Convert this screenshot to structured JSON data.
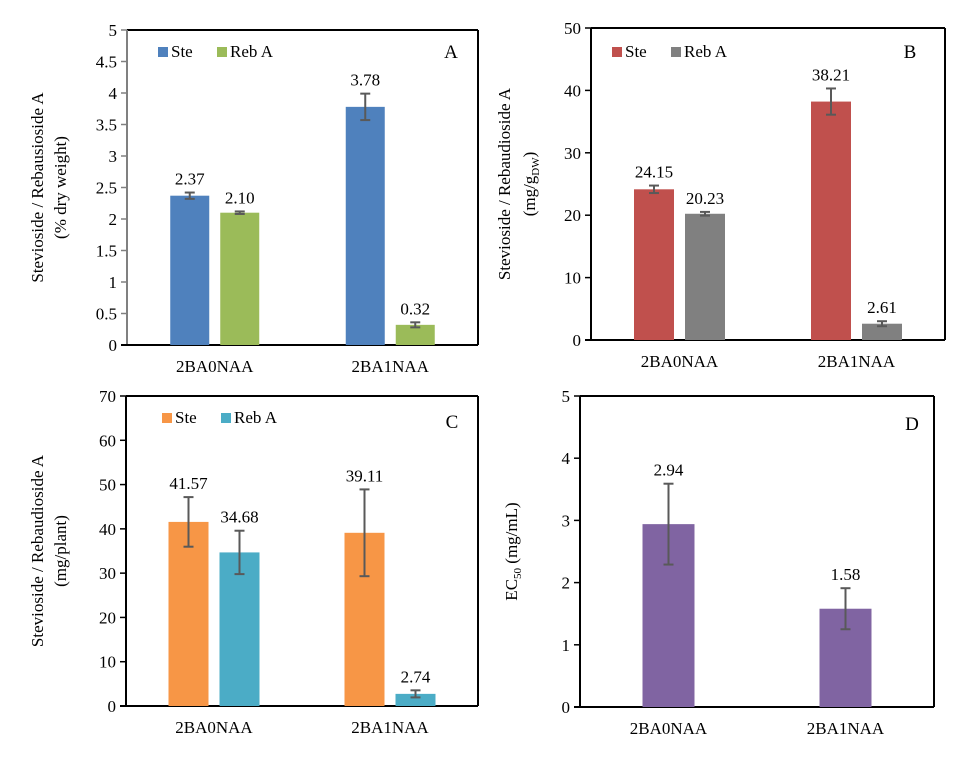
{
  "chart_data": [
    {
      "type": "bar",
      "panel_label": "A",
      "ylabel_line1": "Stevioside / Rebausioside A",
      "ylabel_line2": "(% dry weight)",
      "xlabel": "",
      "categories": [
        "2BA0NAA",
        "2BA1NAA"
      ],
      "ylim": [
        0,
        5
      ],
      "yticks": [
        0,
        0.5,
        1,
        1.5,
        2,
        2.5,
        3,
        3.5,
        4,
        4.5,
        5
      ],
      "ytick_labels": [
        "0",
        "0.5",
        "1",
        "1.5",
        "2",
        "2.5",
        "3",
        "3.5",
        "4",
        "4.5",
        "5"
      ],
      "legend_position": "top-left",
      "grid": false,
      "series": [
        {
          "name": "Ste",
          "color": "#4F81BD",
          "values": [
            2.37,
            3.78
          ],
          "errors": [
            0.05,
            0.21
          ],
          "labels": [
            "2.37",
            "3.78"
          ]
        },
        {
          "name": "Reb A",
          "color": "#9BBB59",
          "values": [
            2.1,
            0.32
          ],
          "errors": [
            0.02,
            0.04
          ],
          "labels": [
            "2.10",
            "0.32"
          ]
        }
      ]
    },
    {
      "type": "bar",
      "panel_label": "B",
      "ylabel_line1": "Stevioside / Rebaudioside A",
      "ylabel_line2": "(mg/g",
      "ylabel_sub": "DW",
      "ylabel_line2_end": ")",
      "xlabel": "",
      "categories": [
        "2BA0NAA",
        "2BA1NAA"
      ],
      "ylim": [
        0,
        50
      ],
      "yticks": [
        0,
        10,
        20,
        30,
        40,
        50
      ],
      "ytick_labels": [
        "0",
        "10",
        "20",
        "30",
        "40",
        "50"
      ],
      "legend_position": "top-left",
      "grid": false,
      "series": [
        {
          "name": "Ste",
          "color": "#C0504D",
          "values": [
            24.15,
            38.21
          ],
          "errors": [
            0.6,
            2.1
          ],
          "labels": [
            "24.15",
            "38.21"
          ]
        },
        {
          "name": "Reb A",
          "color": "#808080",
          "values": [
            20.23,
            2.61
          ],
          "errors": [
            0.3,
            0.4
          ],
          "labels": [
            "20.23",
            "2.61"
          ]
        }
      ]
    },
    {
      "type": "bar",
      "panel_label": "C",
      "ylabel_line1": "Stevioside / Rebaudioside A",
      "ylabel_line2": "(mg/plant)",
      "xlabel": "",
      "categories": [
        "2BA0NAA",
        "2BA1NAA"
      ],
      "ylim": [
        0,
        70
      ],
      "yticks": [
        0,
        10,
        20,
        30,
        40,
        50,
        60,
        70
      ],
      "ytick_labels": [
        "0",
        "10",
        "20",
        "30",
        "40",
        "50",
        "60",
        "70"
      ],
      "legend_position": "top-left",
      "grid": false,
      "series": [
        {
          "name": "Ste",
          "color": "#F79646",
          "values": [
            41.57,
            39.11
          ],
          "errors": [
            5.6,
            9.8
          ],
          "labels": [
            "41.57",
            "39.11"
          ]
        },
        {
          "name": "Reb A",
          "color": "#4BACC6",
          "values": [
            34.68,
            2.74
          ],
          "errors": [
            4.9,
            0.8
          ],
          "labels": [
            "34.68",
            "2.74"
          ]
        }
      ]
    },
    {
      "type": "bar",
      "panel_label": "D",
      "ylabel_line1": "EC",
      "ylabel_sub": "50",
      "ylabel_line1_end": " (mg/mL)",
      "xlabel": "",
      "categories": [
        "2BA0NAA",
        "2BA1NAA"
      ],
      "ylim": [
        0,
        5
      ],
      "yticks": [
        0,
        1,
        2,
        3,
        4,
        5
      ],
      "ytick_labels": [
        "0",
        "1",
        "2",
        "3",
        "4",
        "5"
      ],
      "legend_position": "none",
      "grid": false,
      "series": [
        {
          "name": "EC50",
          "color": "#8064A2",
          "values": [
            2.94,
            1.58
          ],
          "errors": [
            0.65,
            0.33
          ],
          "labels": [
            "2.94",
            "1.58"
          ]
        }
      ]
    }
  ]
}
